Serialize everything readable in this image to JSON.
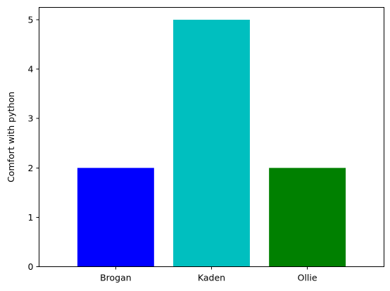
{
  "chart_data": {
    "type": "bar",
    "categories": [
      "Brogan",
      "Kaden",
      "Ollie"
    ],
    "values": [
      2,
      5,
      2
    ],
    "colors": [
      "#0000ff",
      "#00bfbf",
      "#008000"
    ],
    "xlabel": "",
    "ylabel": "Comfort with python",
    "ylim": [
      0,
      5.25
    ],
    "yticks": [
      0,
      1,
      2,
      3,
      4,
      5
    ],
    "grid": false
  }
}
